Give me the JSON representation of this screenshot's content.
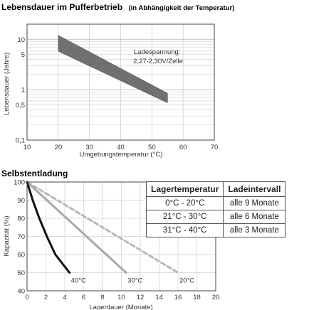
{
  "chart_data": [
    {
      "type": "area",
      "title": "Lebensdauer im Pufferbetrieb",
      "subtitle": "(in Abhängigkeit der Temperatur)",
      "xlabel": "Umgebungstemperatur (°C)",
      "ylabel": "Lebensdauer (Jahre)",
      "xlim": [
        10,
        70
      ],
      "ylim": [
        0.1,
        20
      ],
      "yscale": "log",
      "grid": true,
      "x_ticks": [
        "10",
        "20",
        "30",
        "40",
        "50",
        "60",
        "70"
      ],
      "y_ticks": [
        {
          "value": 0.1,
          "label": "0,1"
        },
        {
          "value": 0.5,
          "label": "0,5"
        },
        {
          "value": 1,
          "label": "1"
        },
        {
          "value": 5,
          "label": "5"
        },
        {
          "value": 10,
          "label": "10"
        }
      ],
      "band": {
        "upper": [
          {
            "x": 20,
            "y": 12
          },
          {
            "x": 55,
            "y": 0.85
          }
        ],
        "lower": [
          {
            "x": 20,
            "y": 5.8
          },
          {
            "x": 55,
            "y": 0.55
          }
        ],
        "color": "#707070"
      },
      "annotation": "Ladespannung:\n2,27-2,30V/Zelle"
    },
    {
      "type": "line",
      "title": "Selbstentladung",
      "xlabel": "Lagerdauer (Monate)",
      "ylabel": "Kapazität (%)",
      "xlim": [
        0,
        20
      ],
      "ylim": [
        40,
        100
      ],
      "grid": true,
      "x_ticks": [
        "0",
        "2",
        "4",
        "6",
        "8",
        "10",
        "12",
        "14",
        "16",
        "18",
        "20"
      ],
      "y_ticks": [
        "40",
        "50",
        "60",
        "70",
        "80",
        "90",
        "100"
      ],
      "series": [
        {
          "name": "40°C",
          "color": "#111111",
          "style": "solid",
          "width": 3,
          "points": [
            [
              0,
              100
            ],
            [
              0.6,
              90
            ],
            [
              1.3,
              80
            ],
            [
              2.1,
              70
            ],
            [
              3.0,
              60
            ],
            [
              4.5,
              50
            ]
          ]
        },
        {
          "name": "30°C",
          "color": "#a8a8a8",
          "style": "solid",
          "width": 3,
          "points": [
            [
              0,
              100
            ],
            [
              10.5,
              50
            ]
          ]
        },
        {
          "name": "20°C",
          "color": "#b8b8b8",
          "style": "dashed",
          "width": 3,
          "points": [
            [
              0,
              100
            ],
            [
              16,
              50
            ]
          ]
        }
      ],
      "table": {
        "headers": [
          "Lagertemperatur",
          "Ladeintervall"
        ],
        "rows": [
          [
            "0°C - 20°C",
            "alle 9 Monate"
          ],
          [
            "21°C - 30°C",
            "alle 6 Monate"
          ],
          [
            "31°C - 40°C",
            "alle 3 Monate"
          ]
        ]
      }
    }
  ]
}
